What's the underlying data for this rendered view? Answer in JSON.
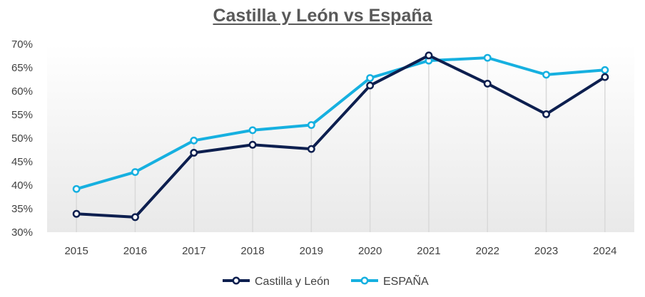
{
  "chart_data": {
    "type": "line",
    "title": "Castilla y León vs España",
    "xlabel": "",
    "ylabel": "",
    "categories": [
      "2015",
      "2016",
      "2017",
      "2018",
      "2019",
      "2020",
      "2021",
      "2022",
      "2023",
      "2024"
    ],
    "y_ticks": [
      "30%",
      "35%",
      "40%",
      "45%",
      "50%",
      "55%",
      "60%",
      "65%",
      "70%"
    ],
    "ylim": [
      30,
      70
    ],
    "grid": false,
    "legend_position": "bottom",
    "series": [
      {
        "name": "Castilla y León",
        "color": "#0d1f4f",
        "values": [
          33.9,
          33.2,
          46.9,
          48.6,
          47.7,
          61.2,
          67.6,
          61.6,
          55.1,
          63.0
        ]
      },
      {
        "name": "ESPAÑA",
        "color": "#16b0e0",
        "values": [
          39.2,
          42.8,
          49.5,
          51.7,
          52.8,
          62.8,
          66.5,
          67.1,
          63.5,
          64.5
        ]
      }
    ]
  }
}
